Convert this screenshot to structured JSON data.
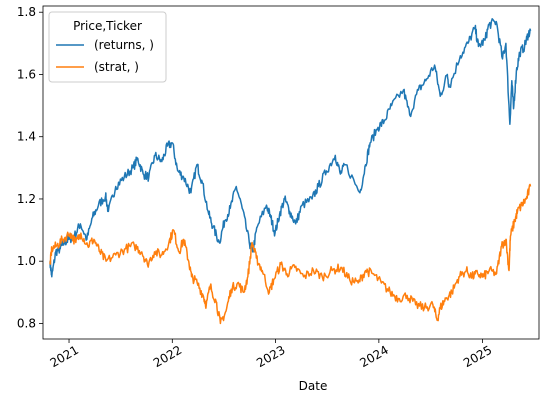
{
  "chart_data": {
    "type": "line",
    "title": "",
    "xlabel": "Date",
    "ylabel": "",
    "xlim": [
      "2020-10-01",
      "2025-07-20"
    ],
    "ylim": [
      0.75,
      1.82
    ],
    "grid": false,
    "legend": {
      "title": "Price,Ticker",
      "placement": "top-left"
    },
    "x_ticks": [
      "2021",
      "2022",
      "2023",
      "2024",
      "2025"
    ],
    "y_ticks": [
      "0.8",
      "1.0",
      "1.2",
      "1.4",
      "1.6",
      "1.8"
    ],
    "series": [
      {
        "name": "(returns, )",
        "color": "#1f77b4",
        "points": [
          [
            "2020-10-26",
            1.0
          ],
          [
            "2020-11-01",
            0.95
          ],
          [
            "2020-11-15",
            1.03
          ],
          [
            "2020-12-01",
            1.04
          ],
          [
            "2020-12-15",
            1.06
          ],
          [
            "2021-01-01",
            1.07
          ],
          [
            "2021-01-20",
            1.08
          ],
          [
            "2021-02-10",
            1.12
          ],
          [
            "2021-03-05",
            1.07
          ],
          [
            "2021-03-25",
            1.14
          ],
          [
            "2021-04-15",
            1.18
          ],
          [
            "2021-05-10",
            1.21
          ],
          [
            "2021-05-20",
            1.16
          ],
          [
            "2021-06-15",
            1.24
          ],
          [
            "2021-07-15",
            1.27
          ],
          [
            "2021-08-15",
            1.3
          ],
          [
            "2021-09-01",
            1.33
          ],
          [
            "2021-09-20",
            1.28
          ],
          [
            "2021-10-10",
            1.27
          ],
          [
            "2021-11-01",
            1.34
          ],
          [
            "2021-11-25",
            1.32
          ],
          [
            "2021-12-15",
            1.37
          ],
          [
            "2022-01-01",
            1.38
          ],
          [
            "2022-01-20",
            1.29
          ],
          [
            "2022-02-10",
            1.27
          ],
          [
            "2022-03-08",
            1.22
          ],
          [
            "2022-03-29",
            1.31
          ],
          [
            "2022-04-15",
            1.26
          ],
          [
            "2022-05-10",
            1.15
          ],
          [
            "2022-05-25",
            1.11
          ],
          [
            "2022-06-16",
            1.06
          ],
          [
            "2022-07-05",
            1.13
          ],
          [
            "2022-07-25",
            1.17
          ],
          [
            "2022-08-15",
            1.24
          ],
          [
            "2022-09-05",
            1.17
          ],
          [
            "2022-09-30",
            1.06
          ],
          [
            "2022-10-12",
            1.03
          ],
          [
            "2022-10-28",
            1.11
          ],
          [
            "2022-11-30",
            1.18
          ],
          [
            "2022-12-15",
            1.14
          ],
          [
            "2022-12-30",
            1.09
          ],
          [
            "2023-01-15",
            1.15
          ],
          [
            "2023-02-02",
            1.2
          ],
          [
            "2023-02-20",
            1.16
          ],
          [
            "2023-03-13",
            1.12
          ],
          [
            "2023-04-05",
            1.18
          ],
          [
            "2023-05-10",
            1.2
          ],
          [
            "2023-06-01",
            1.24
          ],
          [
            "2023-06-30",
            1.29
          ],
          [
            "2023-07-31",
            1.34
          ],
          [
            "2023-08-18",
            1.28
          ],
          [
            "2023-09-05",
            1.31
          ],
          [
            "2023-10-26",
            1.22
          ],
          [
            "2023-11-15",
            1.31
          ],
          [
            "2023-12-01",
            1.38
          ],
          [
            "2023-12-29",
            1.43
          ],
          [
            "2024-01-20",
            1.45
          ],
          [
            "2024-02-15",
            1.5
          ],
          [
            "2024-03-28",
            1.55
          ],
          [
            "2024-04-19",
            1.47
          ],
          [
            "2024-05-20",
            1.55
          ],
          [
            "2024-06-15",
            1.58
          ],
          [
            "2024-07-16",
            1.63
          ],
          [
            "2024-08-05",
            1.53
          ],
          [
            "2024-08-30",
            1.6
          ],
          [
            "2024-09-06",
            1.56
          ],
          [
            "2024-10-15",
            1.66
          ],
          [
            "2024-11-11",
            1.7
          ],
          [
            "2024-12-06",
            1.75
          ],
          [
            "2024-12-18",
            1.69
          ],
          [
            "2025-01-10",
            1.71
          ],
          [
            "2025-01-24",
            1.76
          ],
          [
            "2025-02-19",
            1.77
          ],
          [
            "2025-03-13",
            1.65
          ],
          [
            "2025-03-25",
            1.7
          ],
          [
            "2025-04-08",
            1.44
          ],
          [
            "2025-04-15",
            1.58
          ],
          [
            "2025-04-21",
            1.49
          ],
          [
            "2025-05-01",
            1.61
          ],
          [
            "2025-05-13",
            1.67
          ],
          [
            "2025-05-30",
            1.69
          ],
          [
            "2025-06-12",
            1.73
          ],
          [
            "2025-06-20",
            1.74
          ]
        ]
      },
      {
        "name": "(strat, )",
        "color": "#ff7f0e",
        "points": [
          [
            "2020-10-26",
            0.99
          ],
          [
            "2020-11-01",
            1.04
          ],
          [
            "2020-11-20",
            1.05
          ],
          [
            "2020-12-10",
            1.07
          ],
          [
            "2021-01-05",
            1.09
          ],
          [
            "2021-01-25",
            1.06
          ],
          [
            "2021-02-12",
            1.09
          ],
          [
            "2021-03-08",
            1.05
          ],
          [
            "2021-03-30",
            1.07
          ],
          [
            "2021-04-20",
            1.03
          ],
          [
            "2021-05-12",
            1.0
          ],
          [
            "2021-06-15",
            1.02
          ],
          [
            "2021-07-20",
            1.04
          ],
          [
            "2021-08-20",
            1.05
          ],
          [
            "2021-09-15",
            1.03
          ],
          [
            "2021-10-05",
            0.99
          ],
          [
            "2021-10-30",
            1.03
          ],
          [
            "2021-11-25",
            1.02
          ],
          [
            "2021-12-20",
            1.06
          ],
          [
            "2022-01-05",
            1.1
          ],
          [
            "2022-01-25",
            1.03
          ],
          [
            "2022-02-10",
            1.07
          ],
          [
            "2022-02-28",
            1.0
          ],
          [
            "2022-03-10",
            0.95
          ],
          [
            "2022-03-30",
            0.93
          ],
          [
            "2022-04-20",
            0.89
          ],
          [
            "2022-05-01",
            0.86
          ],
          [
            "2022-05-15",
            0.92
          ],
          [
            "2022-06-05",
            0.87
          ],
          [
            "2022-06-20",
            0.8
          ],
          [
            "2022-07-10",
            0.84
          ],
          [
            "2022-07-28",
            0.91
          ],
          [
            "2022-08-20",
            0.93
          ],
          [
            "2022-09-10",
            0.9
          ],
          [
            "2022-09-25",
            0.95
          ],
          [
            "2022-10-10",
            1.06
          ],
          [
            "2022-10-25",
            1.01
          ],
          [
            "2022-11-15",
            0.97
          ],
          [
            "2022-12-10",
            0.9
          ],
          [
            "2022-12-25",
            0.94
          ],
          [
            "2023-01-20",
            0.99
          ],
          [
            "2023-02-10",
            0.96
          ],
          [
            "2023-03-10",
            0.98
          ],
          [
            "2023-04-10",
            0.95
          ],
          [
            "2023-05-15",
            0.97
          ],
          [
            "2023-06-15",
            0.95
          ],
          [
            "2023-07-20",
            0.97
          ],
          [
            "2023-08-20",
            0.98
          ],
          [
            "2023-09-20",
            0.94
          ],
          [
            "2023-10-20",
            0.93
          ],
          [
            "2023-11-15",
            0.97
          ],
          [
            "2023-12-10",
            0.96
          ],
          [
            "2024-01-10",
            0.93
          ],
          [
            "2024-02-10",
            0.9
          ],
          [
            "2024-03-10",
            0.88
          ],
          [
            "2024-04-10",
            0.89
          ],
          [
            "2024-05-10",
            0.86
          ],
          [
            "2024-06-10",
            0.85
          ],
          [
            "2024-07-10",
            0.86
          ],
          [
            "2024-07-25",
            0.81
          ],
          [
            "2024-08-05",
            0.85
          ],
          [
            "2024-08-25",
            0.88
          ],
          [
            "2024-09-15",
            0.9
          ],
          [
            "2024-10-10",
            0.95
          ],
          [
            "2024-11-05",
            0.97
          ],
          [
            "2024-11-25",
            0.95
          ],
          [
            "2024-12-15",
            0.96
          ],
          [
            "2025-01-05",
            0.95
          ],
          [
            "2025-01-25",
            0.97
          ],
          [
            "2025-02-20",
            0.96
          ],
          [
            "2025-03-10",
            1.05
          ],
          [
            "2025-03-25",
            1.07
          ],
          [
            "2025-04-05",
            0.97
          ],
          [
            "2025-04-10",
            1.08
          ],
          [
            "2025-04-25",
            1.13
          ],
          [
            "2025-05-05",
            1.16
          ],
          [
            "2025-05-20",
            1.18
          ],
          [
            "2025-06-05",
            1.2
          ],
          [
            "2025-06-20",
            1.24
          ]
        ]
      }
    ]
  }
}
